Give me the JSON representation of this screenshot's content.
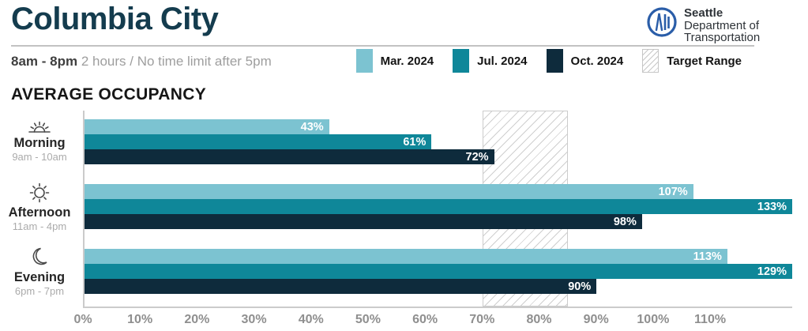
{
  "header": {
    "title": "Columbia City",
    "hours_bold": "8am - 8pm",
    "hours_rest": "2 hours / No time limit after 5pm",
    "logo": {
      "line1": "Seattle",
      "line2": "Department of",
      "line3": "Transportation",
      "brand_color": "#2a5da8"
    }
  },
  "legend": [
    {
      "label": "Mar. 2024",
      "type": "solid",
      "color": "#7cc3d1"
    },
    {
      "label": "Jul. 2024",
      "type": "solid",
      "color": "#0f8799"
    },
    {
      "label": "Oct. 2024",
      "type": "solid",
      "color": "#0e2b3c"
    },
    {
      "label": "Target Range",
      "type": "hatch",
      "color": "#cfcfcf"
    }
  ],
  "section_title": "AVERAGE OCCUPANCY",
  "chart_data": {
    "type": "bar",
    "orientation": "horizontal",
    "title": "AVERAGE OCCUPANCY",
    "categories": [
      {
        "name": "Morning",
        "time": "9am - 10am",
        "icon": "sunrise-icon"
      },
      {
        "name": "Afternoon",
        "time": "11am - 4pm",
        "icon": "sun-icon"
      },
      {
        "name": "Evening",
        "time": "6pm - 7pm",
        "icon": "moon-icon"
      }
    ],
    "series": [
      {
        "name": "Mar. 2024",
        "color": "#7cc3d1",
        "values": [
          43,
          107,
          113
        ]
      },
      {
        "name": "Jul. 2024",
        "color": "#0f8799",
        "values": [
          61,
          133,
          129
        ]
      },
      {
        "name": "Oct. 2024",
        "color": "#0e2b3c",
        "values": [
          72,
          98,
          90
        ]
      }
    ],
    "value_suffix": "%",
    "target_range": {
      "min": 70,
      "max": 85
    },
    "x_ticks": [
      "0%",
      "10%",
      "20%",
      "30%",
      "40%",
      "50%",
      "60%",
      "70%",
      "80%",
      "90%",
      "100%",
      "110%"
    ],
    "tick_step": 10,
    "xlim": [
      0,
      124.4
    ],
    "grid": false,
    "legend_position": "top-right"
  }
}
